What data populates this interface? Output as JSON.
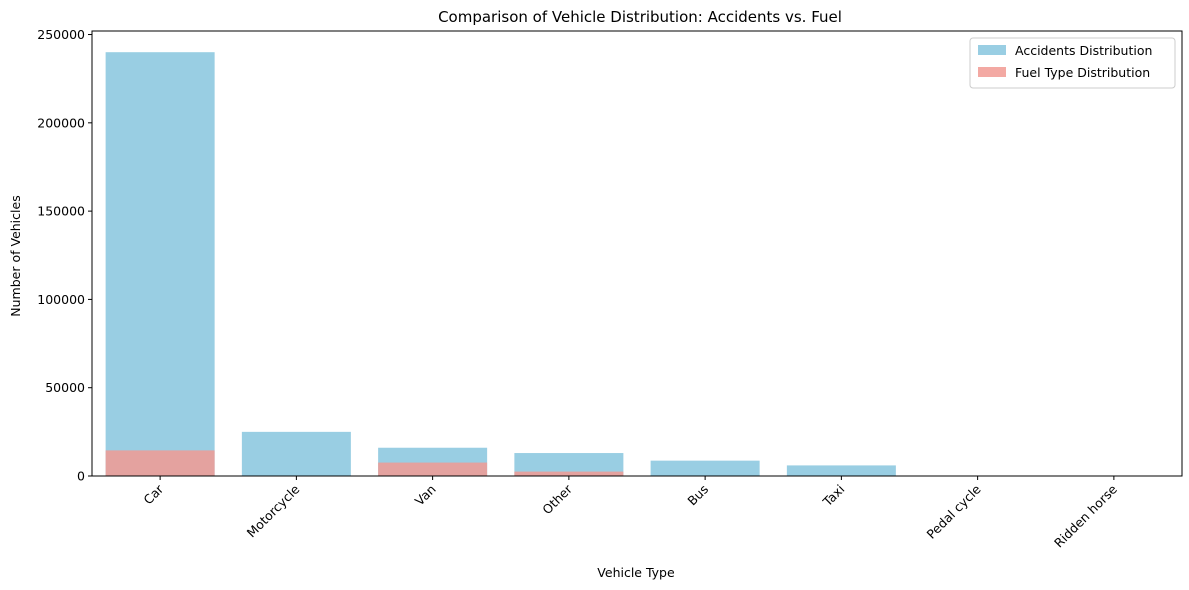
{
  "chart_data": {
    "type": "bar",
    "title": "Comparison of Vehicle Distribution: Accidents vs. Fuel",
    "xlabel": "Vehicle Type",
    "ylabel": "Number of Vehicles",
    "categories": [
      "Car",
      "Motorcycle",
      "Van",
      "Other",
      "Bus",
      "Taxi",
      "Pedal cycle",
      "Ridden horse"
    ],
    "series": [
      {
        "name": "Accidents Distribution",
        "color": "#87c5de",
        "values": [
          240000,
          25000,
          16000,
          13000,
          8700,
          6000,
          0,
          0
        ]
      },
      {
        "name": "Fuel Type Distribution",
        "color": "#f19a93",
        "values": [
          14500,
          0,
          7600,
          2500,
          0,
          0,
          0,
          0
        ]
      }
    ],
    "ylim": [
      0,
      252000
    ],
    "yticks": [
      0,
      50000,
      100000,
      150000,
      200000,
      250000
    ],
    "ytick_labels": [
      "0",
      "50000",
      "100000",
      "150000",
      "200000",
      "250000"
    ],
    "grid": false,
    "legend_position": "top-right",
    "overlay": true
  }
}
